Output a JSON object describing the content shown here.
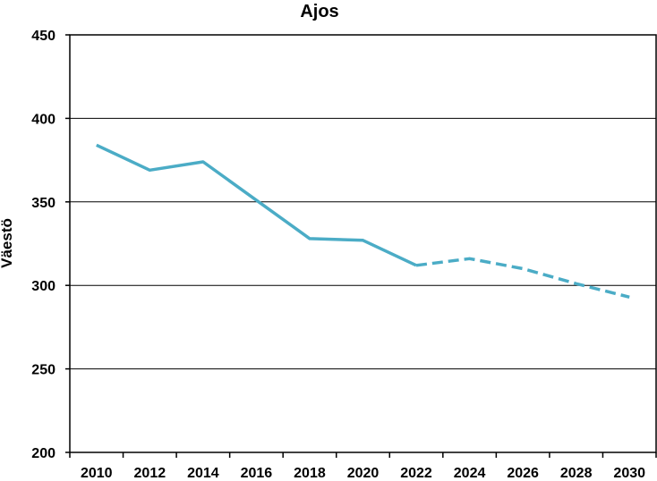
{
  "chart_data": {
    "type": "line",
    "title": "Ajos",
    "xlabel": "",
    "ylabel": "Väestö",
    "xlim": [
      2009,
      2031
    ],
    "ylim": [
      200,
      450
    ],
    "x_ticks": [
      "2010",
      "2012",
      "2014",
      "2016",
      "2018",
      "2020",
      "2022",
      "2024",
      "2026",
      "2028",
      "2030"
    ],
    "y_ticks": [
      "200",
      "250",
      "300",
      "350",
      "400",
      "450"
    ],
    "grid": true,
    "colors": {
      "line": "#4BACC6",
      "grid": "#000000",
      "frame": "#000000"
    },
    "series": [
      {
        "style": "solid",
        "x": [
          2010,
          2012,
          2014,
          2016,
          2018,
          2020,
          2022
        ],
        "values": [
          384,
          369,
          374,
          351,
          328,
          327,
          312
        ]
      },
      {
        "style": "dashed",
        "x": [
          2022,
          2024,
          2026,
          2028,
          2030
        ],
        "values": [
          312,
          316,
          310,
          301,
          293
        ]
      }
    ]
  }
}
